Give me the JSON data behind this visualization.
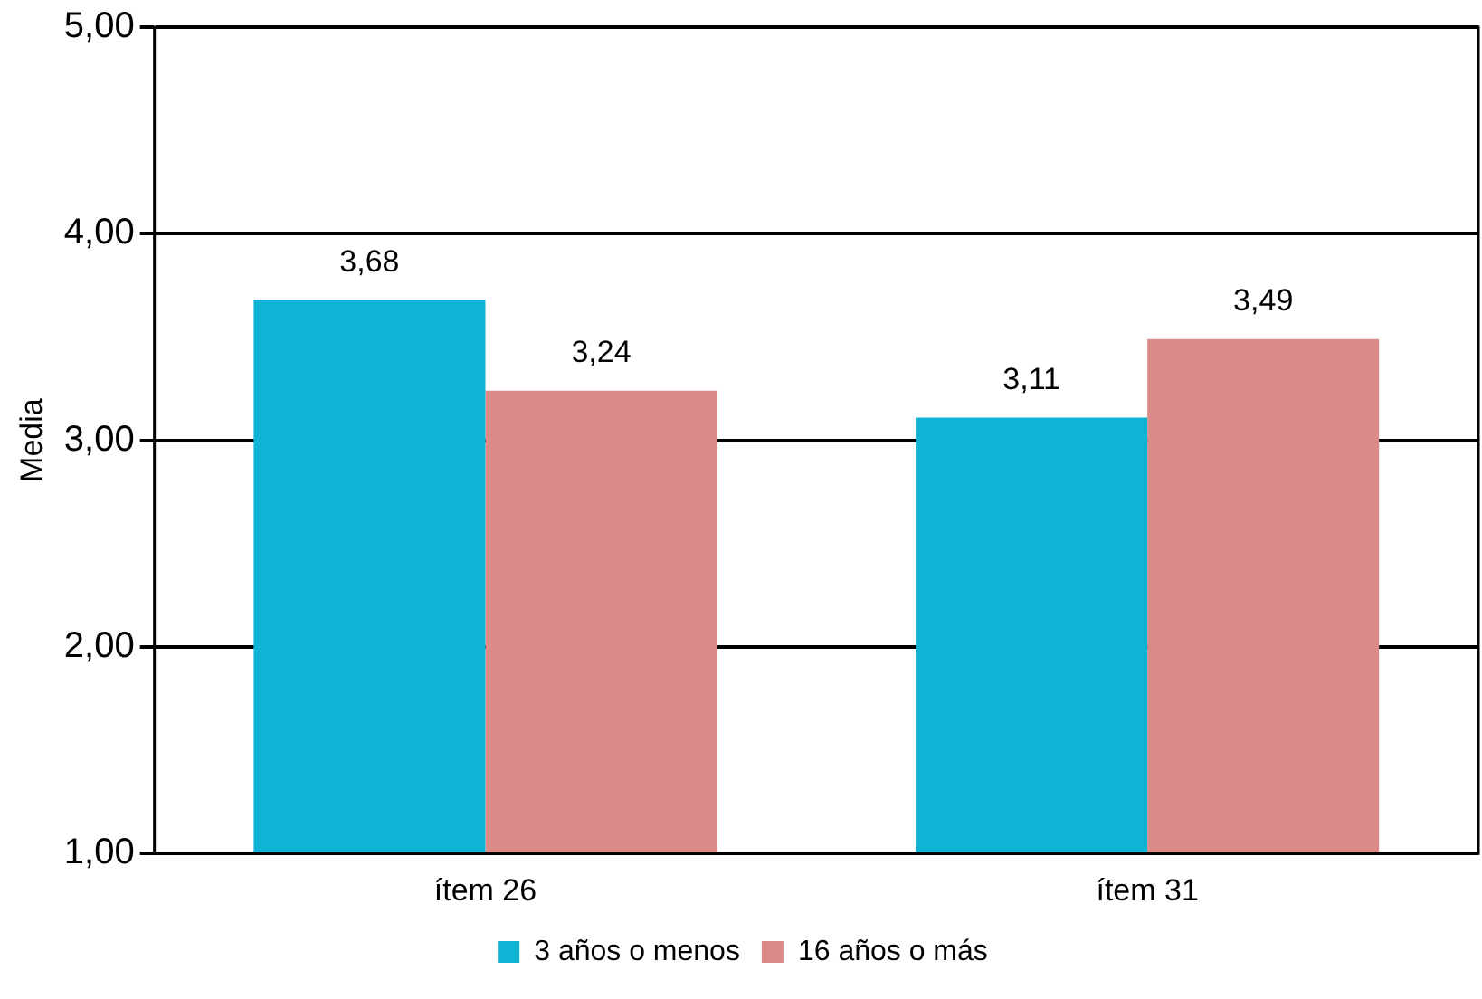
{
  "chart_data": {
    "type": "bar",
    "ylabel": "Media",
    "categories": [
      "ítem 26",
      "ítem 31"
    ],
    "series": [
      {
        "name": "3 años o menos",
        "color": "#0fb4d4",
        "values": [
          3.68,
          3.11
        ],
        "value_labels": [
          "3,68",
          "3,11"
        ]
      },
      {
        "name": "16 años o más",
        "color": "#dc8a88",
        "values": [
          3.24,
          3.49
        ],
        "value_labels": [
          "3,24",
          "3,49"
        ]
      }
    ],
    "ylim": [
      1,
      5
    ],
    "yticks": [
      {
        "value": 1,
        "label": "1,00"
      },
      {
        "value": 2,
        "label": "2,00"
      },
      {
        "value": 3,
        "label": "3,00"
      },
      {
        "value": 4,
        "label": "4,00"
      },
      {
        "value": 5,
        "label": "5,00"
      }
    ],
    "grid": "y",
    "legend": "bottom"
  }
}
